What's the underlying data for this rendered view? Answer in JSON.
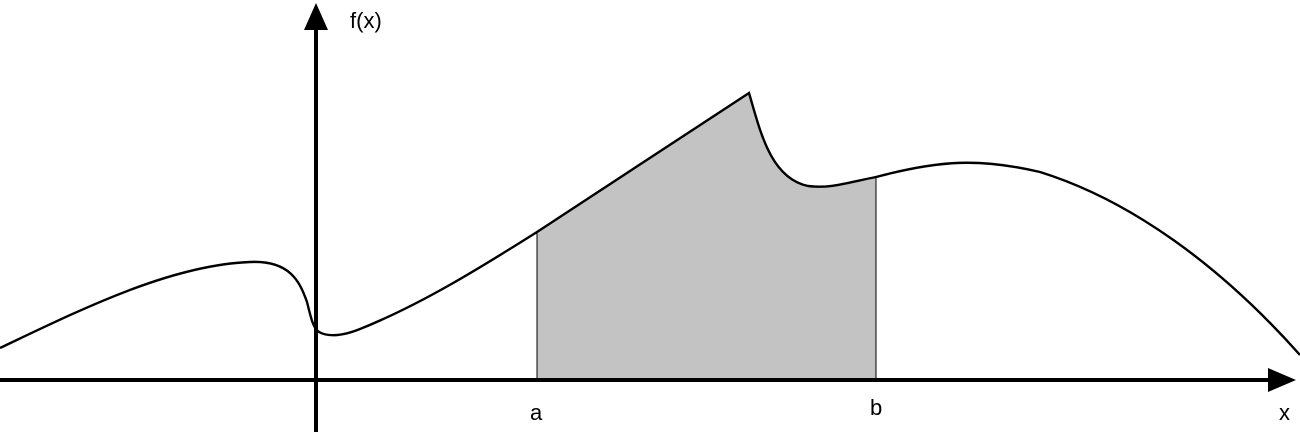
{
  "diagram": {
    "y_axis_label": "f(x)",
    "x_axis_label": "x",
    "lower_bound_label": "a",
    "upper_bound_label": "b",
    "colors": {
      "curve": "#000000",
      "axes": "#000000",
      "shaded_area": "#c3c3c3",
      "background": "#ffffff"
    }
  }
}
